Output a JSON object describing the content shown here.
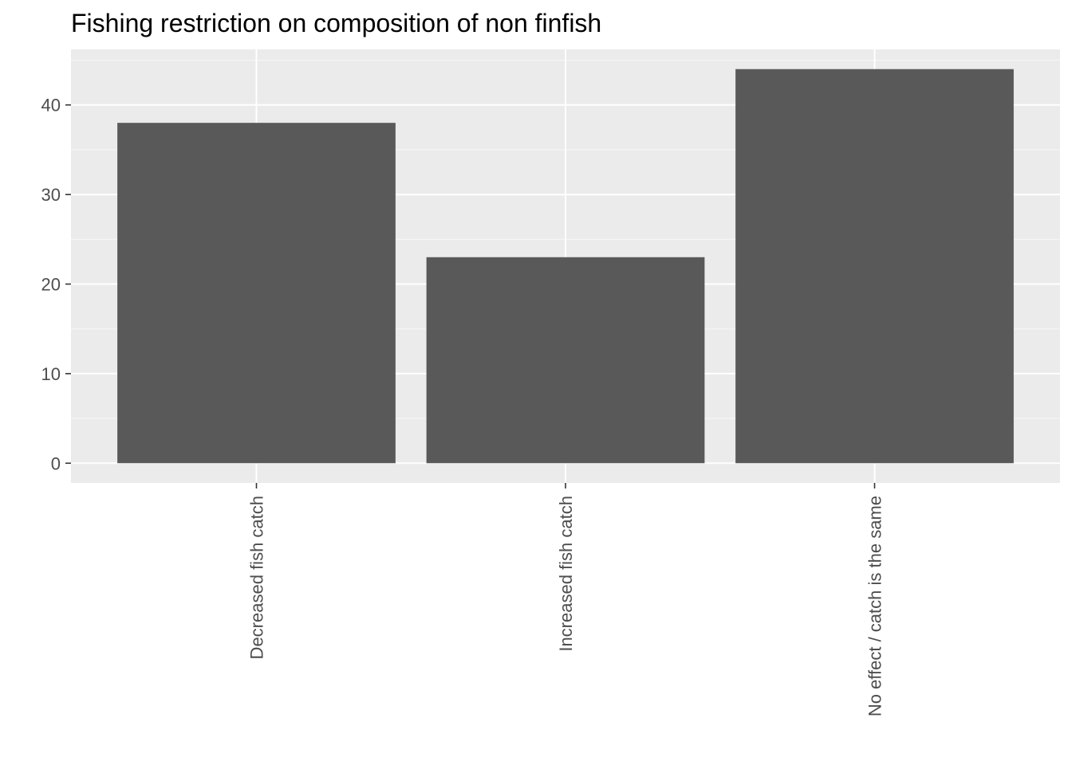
{
  "chart_data": {
    "type": "bar",
    "title": "Fishing restriction on composition of non finfish",
    "xlabel": "",
    "ylabel": "",
    "categories": [
      "Decreased fish catch",
      "Increased fish catch",
      "No effect / catch is the same"
    ],
    "values": [
      38,
      23,
      44
    ],
    "ylim": [
      -2.2,
      46.2
    ],
    "yticks": [
      0,
      10,
      20,
      30,
      40
    ],
    "grid": true,
    "legend": "none",
    "colors": {
      "bar": "#595959",
      "panel_background": "#ebebeb",
      "grid_major": "#ffffff",
      "grid_minor": "#f5f5f5",
      "tick_text": "#4d4d4d",
      "tick_mark": "#333333"
    }
  }
}
